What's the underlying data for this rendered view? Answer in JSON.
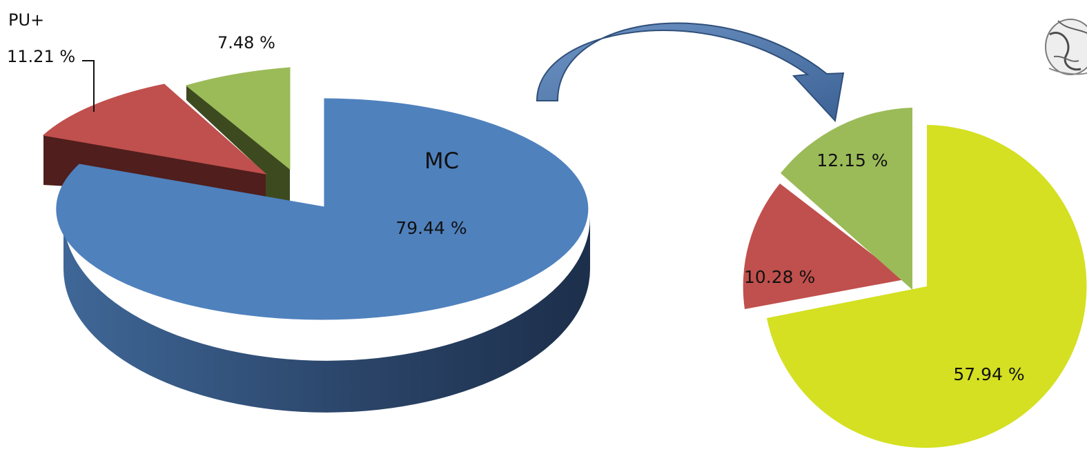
{
  "chart_data": [
    {
      "type": "pie",
      "style": "3d-exploded",
      "slices": [
        {
          "label": "MC",
          "value": 79.44,
          "value_text": "79.44  %",
          "color": "#4f81bd"
        },
        {
          "label": "PU+",
          "value": 11.21,
          "value_text": "11.21  %",
          "color": "#c0504d"
        },
        {
          "label": "",
          "value": 7.48,
          "value_text": "7.48  %",
          "color": "#9bbb59"
        }
      ]
    },
    {
      "type": "pie",
      "style": "2d-exploded",
      "slices": [
        {
          "label": "",
          "value": 57.94,
          "value_text": "57.94  %",
          "color": "#d4e021"
        },
        {
          "label": "",
          "value": 10.28,
          "value_text": "10.28  %",
          "color": "#c0504d"
        },
        {
          "label": "",
          "value": 12.15,
          "value_text": "12.15  %",
          "color": "#9bbb59"
        }
      ]
    }
  ],
  "connector": {
    "icon": "curved-arrow-icon",
    "color": "#4f81bd"
  },
  "corner_image": {
    "icon": "globe-icon"
  }
}
